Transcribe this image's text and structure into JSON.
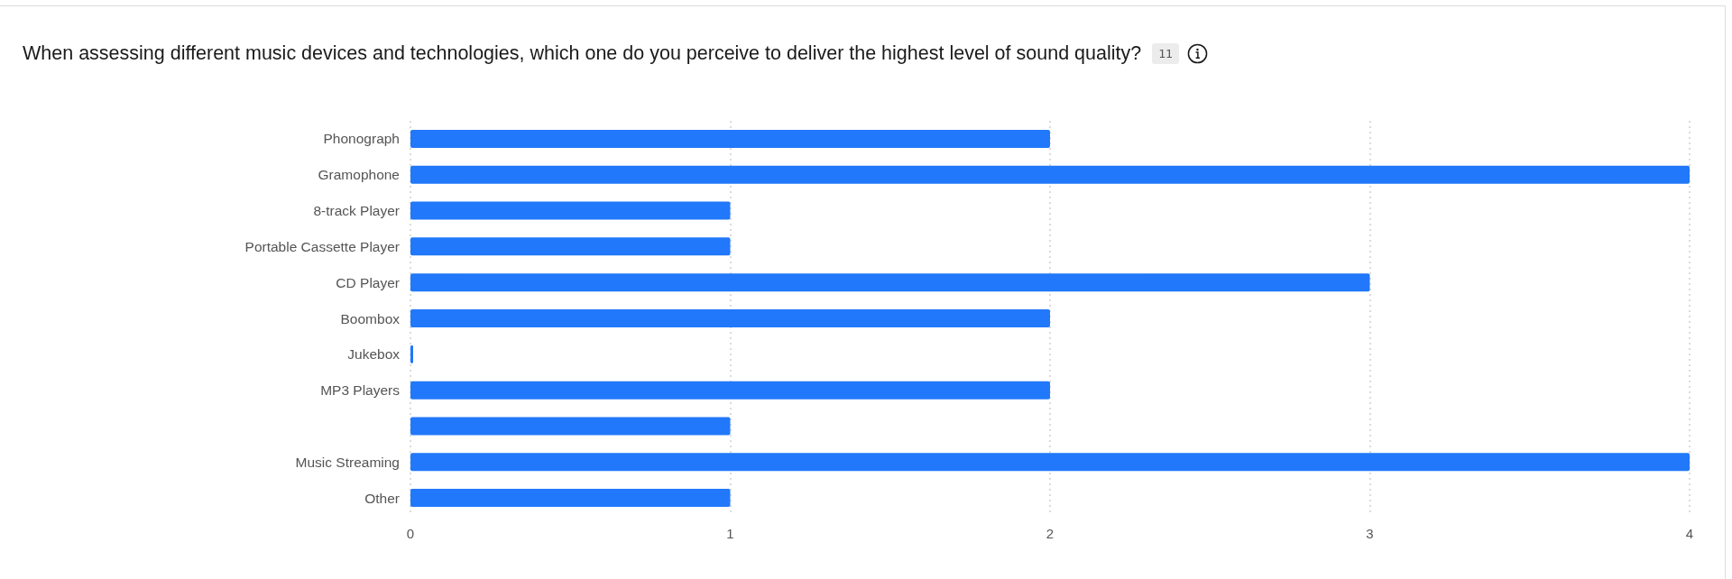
{
  "chart_data": {
    "type": "bar",
    "orientation": "horizontal",
    "title": "When assessing different music devices and technologies, which one do you perceive to deliver the highest level of sound quality?",
    "annotations": [
      "11"
    ],
    "categories": [
      "Phonograph",
      "Gramophone",
      "8-track Player",
      "Portable Cassette Player",
      "CD Player",
      "Boombox",
      "Jukebox",
      "MP3 Players",
      null,
      "Music Streaming",
      "Other"
    ],
    "values": [
      2,
      4,
      1,
      1,
      3,
      2,
      0,
      2,
      1,
      4,
      1
    ],
    "color": "#2178fa",
    "xlim": [
      0,
      4
    ],
    "xticks": [
      0,
      1,
      2,
      3,
      4
    ],
    "grid": "x"
  }
}
